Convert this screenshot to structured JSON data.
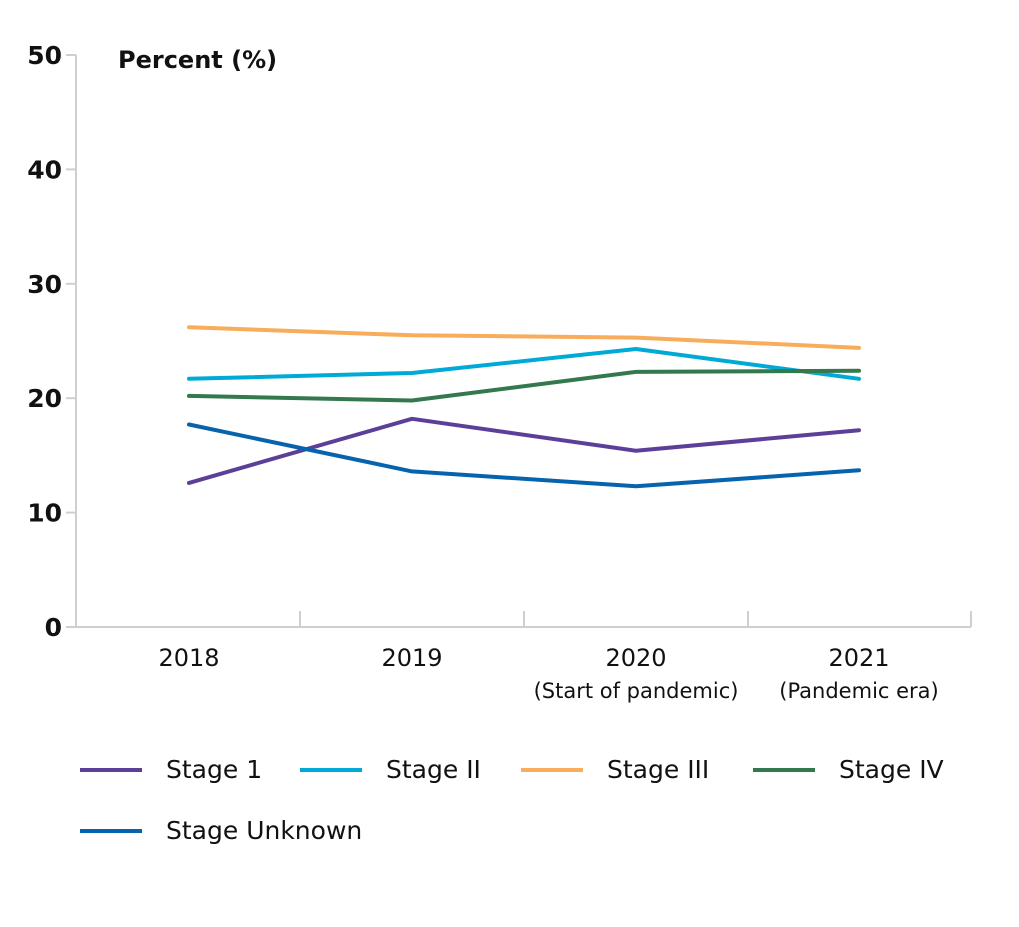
{
  "chart_data": {
    "type": "line",
    "ylabel": "Percent (%)",
    "ylim": [
      0,
      50
    ],
    "yticks": [
      "0",
      "10",
      "20",
      "30",
      "40",
      "50"
    ],
    "categories": [
      "2018",
      "2019",
      "2020",
      "2021"
    ],
    "category_sublabels": [
      "",
      "",
      "(Start of pandemic)",
      "(Pandemic era)"
    ],
    "grid": false,
    "legend_position": "bottom",
    "series": [
      {
        "name": "Stage 1",
        "color": "#5b3f98",
        "values": [
          12.6,
          18.2,
          15.4,
          17.2
        ]
      },
      {
        "name": "Stage II",
        "color": "#00a9d6",
        "values": [
          21.7,
          22.2,
          24.3,
          21.7
        ]
      },
      {
        "name": "Stage III",
        "color": "#f7ad5b",
        "values": [
          26.2,
          25.5,
          25.3,
          24.4
        ]
      },
      {
        "name": "Stage IV",
        "color": "#34784d",
        "values": [
          20.2,
          19.8,
          22.3,
          22.4
        ]
      },
      {
        "name": "Stage Unknown",
        "color": "#0863ad",
        "values": [
          17.7,
          13.6,
          12.3,
          13.7
        ]
      }
    ]
  }
}
